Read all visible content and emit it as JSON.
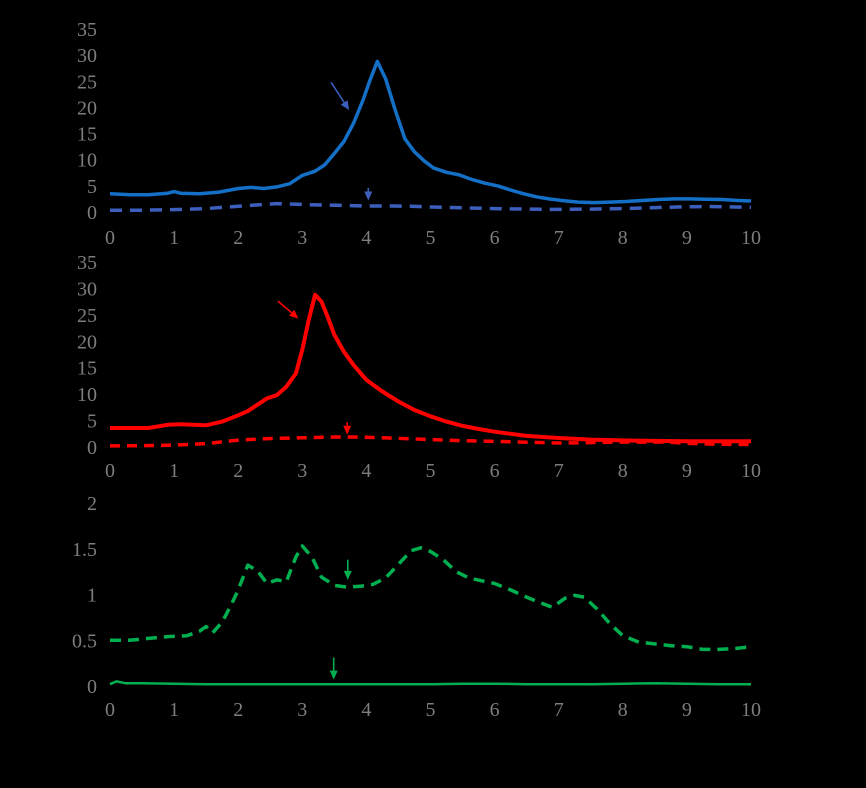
{
  "canvas": {
    "background": "#000000",
    "tick_label_color": "#7d7d7d"
  },
  "chart_data": [
    {
      "id": "chart-top-blue",
      "type": "line",
      "title": "",
      "xlabel": "",
      "ylabel": "",
      "x_range": [
        0,
        10
      ],
      "y_range": [
        0,
        35
      ],
      "x_ticks": [
        0,
        1,
        2,
        3,
        4,
        5,
        6,
        7,
        8,
        9,
        10
      ],
      "y_ticks": [
        0,
        5,
        10,
        15,
        20,
        25,
        30,
        35
      ],
      "grid": false,
      "legend": "none",
      "series": [
        {
          "name": "solid-curve",
          "color": "#1470c6",
          "dash": "none",
          "width": 3.5,
          "points": [
            [
              0,
              3.5
            ],
            [
              0.3,
              3.3
            ],
            [
              0.6,
              3.3
            ],
            [
              0.9,
              3.6
            ],
            [
              1.0,
              3.9
            ],
            [
              1.1,
              3.6
            ],
            [
              1.4,
              3.5
            ],
            [
              1.7,
              3.8
            ],
            [
              2.0,
              4.5
            ],
            [
              2.2,
              4.7
            ],
            [
              2.4,
              4.5
            ],
            [
              2.6,
              4.8
            ],
            [
              2.8,
              5.4
            ],
            [
              3.0,
              7.0
            ],
            [
              3.2,
              7.8
            ],
            [
              3.35,
              9.0
            ],
            [
              3.5,
              11.2
            ],
            [
              3.65,
              13.5
            ],
            [
              3.8,
              17.0
            ],
            [
              3.95,
              21.5
            ],
            [
              4.05,
              25.0
            ],
            [
              4.17,
              28.8
            ],
            [
              4.3,
              25.5
            ],
            [
              4.45,
              19.5
            ],
            [
              4.6,
              14.0
            ],
            [
              4.75,
              11.5
            ],
            [
              4.9,
              9.8
            ],
            [
              5.05,
              8.4
            ],
            [
              5.25,
              7.6
            ],
            [
              5.45,
              7.1
            ],
            [
              5.65,
              6.2
            ],
            [
              5.85,
              5.5
            ],
            [
              6.05,
              5.0
            ],
            [
              6.25,
              4.2
            ],
            [
              6.45,
              3.5
            ],
            [
              6.65,
              2.9
            ],
            [
              6.85,
              2.5
            ],
            [
              7.05,
              2.2
            ],
            [
              7.3,
              1.9
            ],
            [
              7.55,
              1.8
            ],
            [
              7.8,
              1.9
            ],
            [
              8.05,
              2.0
            ],
            [
              8.3,
              2.2
            ],
            [
              8.55,
              2.4
            ],
            [
              8.8,
              2.5
            ],
            [
              9.05,
              2.5
            ],
            [
              9.3,
              2.45
            ],
            [
              9.55,
              2.4
            ],
            [
              9.8,
              2.2
            ],
            [
              10,
              2.1
            ]
          ]
        },
        {
          "name": "dashed-curve",
          "color": "#3c5fbe",
          "dash": "12 8",
          "width": 3.5,
          "points": [
            [
              0,
              0.35
            ],
            [
              0.5,
              0.35
            ],
            [
              1.0,
              0.45
            ],
            [
              1.5,
              0.65
            ],
            [
              2.0,
              1.1
            ],
            [
              2.3,
              1.35
            ],
            [
              2.6,
              1.6
            ],
            [
              2.9,
              1.5
            ],
            [
              3.2,
              1.35
            ],
            [
              3.5,
              1.3
            ],
            [
              3.8,
              1.2
            ],
            [
              4.1,
              1.15
            ],
            [
              4.4,
              1.15
            ],
            [
              4.7,
              1.1
            ],
            [
              5.0,
              0.95
            ],
            [
              5.5,
              0.8
            ],
            [
              6.0,
              0.65
            ],
            [
              6.5,
              0.55
            ],
            [
              7.0,
              0.5
            ],
            [
              7.5,
              0.55
            ],
            [
              8.0,
              0.65
            ],
            [
              8.5,
              0.85
            ],
            [
              9.0,
              1.0
            ],
            [
              9.3,
              1.05
            ],
            [
              9.6,
              1.0
            ],
            [
              10,
              0.9
            ]
          ]
        }
      ],
      "annotations": [
        {
          "type": "arrow",
          "name": "arrow-to-solid",
          "color": "#3c5fbe",
          "from": [
            3.45,
            24.8
          ],
          "to": [
            3.73,
            19.5
          ]
        },
        {
          "type": "arrow",
          "name": "arrow-to-dashed",
          "color": "#3c5fbe",
          "from": [
            4.03,
            4.6
          ],
          "to": [
            4.03,
            2.2
          ]
        }
      ]
    },
    {
      "id": "chart-middle-red",
      "type": "line",
      "title": "",
      "xlabel": "",
      "ylabel": "",
      "x_range": [
        0,
        10
      ],
      "y_range": [
        0,
        35
      ],
      "x_ticks": [
        0,
        1,
        2,
        3,
        4,
        5,
        6,
        7,
        8,
        9,
        10
      ],
      "y_ticks": [
        0,
        5,
        10,
        15,
        20,
        25,
        30,
        35
      ],
      "grid": false,
      "legend": "none",
      "series": [
        {
          "name": "solid-curve",
          "color": "#ff0000",
          "dash": "none",
          "width": 4,
          "points": [
            [
              0,
              3.6
            ],
            [
              0.3,
              3.6
            ],
            [
              0.6,
              3.6
            ],
            [
              0.9,
              4.2
            ],
            [
              1.1,
              4.3
            ],
            [
              1.3,
              4.2
            ],
            [
              1.5,
              4.1
            ],
            [
              1.75,
              4.8
            ],
            [
              2.0,
              6.0
            ],
            [
              2.15,
              6.8
            ],
            [
              2.3,
              8.0
            ],
            [
              2.45,
              9.2
            ],
            [
              2.6,
              9.8
            ],
            [
              2.75,
              11.4
            ],
            [
              2.9,
              13.9
            ],
            [
              3.0,
              18.4
            ],
            [
              3.1,
              24.0
            ],
            [
              3.2,
              28.8
            ],
            [
              3.3,
              27.5
            ],
            [
              3.4,
              24.5
            ],
            [
              3.5,
              21.2
            ],
            [
              3.65,
              18.0
            ],
            [
              3.8,
              15.5
            ],
            [
              4.0,
              12.7
            ],
            [
              4.25,
              10.5
            ],
            [
              4.5,
              8.6
            ],
            [
              4.75,
              7.0
            ],
            [
              5.0,
              5.8
            ],
            [
              5.25,
              4.8
            ],
            [
              5.5,
              4.0
            ],
            [
              5.75,
              3.4
            ],
            [
              6.0,
              2.9
            ],
            [
              6.25,
              2.5
            ],
            [
              6.5,
              2.1
            ],
            [
              6.75,
              1.9
            ],
            [
              7.0,
              1.7
            ],
            [
              7.5,
              1.4
            ],
            [
              8.0,
              1.25
            ],
            [
              8.5,
              1.15
            ],
            [
              9.0,
              1.1
            ],
            [
              9.5,
              1.1
            ],
            [
              10,
              1.1
            ]
          ]
        },
        {
          "name": "dashed-curve",
          "color": "#ff0000",
          "dash": "10 7",
          "width": 3.5,
          "points": [
            [
              0,
              0.2
            ],
            [
              0.5,
              0.25
            ],
            [
              1.0,
              0.35
            ],
            [
              1.5,
              0.65
            ],
            [
              2.0,
              1.3
            ],
            [
              2.5,
              1.6
            ],
            [
              3.0,
              1.75
            ],
            [
              3.5,
              1.9
            ],
            [
              3.8,
              1.9
            ],
            [
              4.1,
              1.8
            ],
            [
              4.5,
              1.65
            ],
            [
              5.0,
              1.4
            ],
            [
              5.5,
              1.2
            ],
            [
              6.0,
              1.05
            ],
            [
              6.5,
              0.9
            ],
            [
              7.0,
              0.75
            ],
            [
              7.4,
              0.8
            ],
            [
              7.8,
              0.9
            ],
            [
              8.1,
              0.95
            ],
            [
              8.4,
              0.9
            ],
            [
              8.7,
              0.95
            ],
            [
              9.0,
              0.7
            ],
            [
              9.4,
              0.55
            ],
            [
              9.7,
              0.5
            ],
            [
              10,
              0.5
            ]
          ]
        }
      ],
      "annotations": [
        {
          "type": "arrow",
          "name": "arrow-to-solid",
          "color": "#ff0000",
          "from": [
            2.62,
            27.6
          ],
          "to": [
            2.94,
            24.3
          ]
        },
        {
          "type": "arrow",
          "name": "arrow-to-dashed",
          "color": "#ff0000",
          "from": [
            3.7,
            4.7
          ],
          "to": [
            3.7,
            2.3
          ]
        }
      ]
    },
    {
      "id": "chart-bottom-green",
      "type": "line",
      "title": "",
      "xlabel": "",
      "ylabel": "",
      "x_range": [
        0,
        10
      ],
      "y_range": [
        0,
        2
      ],
      "x_ticks": [
        0,
        1,
        2,
        3,
        4,
        5,
        6,
        7,
        8,
        9,
        10
      ],
      "y_ticks": [
        0,
        0.5,
        1,
        1.5,
        2
      ],
      "grid": false,
      "legend": "none",
      "series": [
        {
          "name": "dashed-curve",
          "color": "#00b050",
          "dash": "11 7",
          "width": 3.5,
          "points": [
            [
              0,
              0.5
            ],
            [
              0.3,
              0.5
            ],
            [
              0.6,
              0.52
            ],
            [
              0.9,
              0.54
            ],
            [
              1.2,
              0.55
            ],
            [
              1.4,
              0.6
            ],
            [
              1.5,
              0.65
            ],
            [
              1.6,
              0.58
            ],
            [
              1.75,
              0.7
            ],
            [
              1.9,
              0.9
            ],
            [
              2.0,
              1.05
            ],
            [
              2.15,
              1.32
            ],
            [
              2.3,
              1.26
            ],
            [
              2.45,
              1.12
            ],
            [
              2.6,
              1.16
            ],
            [
              2.75,
              1.14
            ],
            [
              2.9,
              1.41
            ],
            [
              3.0,
              1.53
            ],
            [
              3.15,
              1.41
            ],
            [
              3.3,
              1.19
            ],
            [
              3.5,
              1.1
            ],
            [
              3.7,
              1.08
            ],
            [
              3.9,
              1.09
            ],
            [
              4.1,
              1.11
            ],
            [
              4.3,
              1.18
            ],
            [
              4.5,
              1.33
            ],
            [
              4.7,
              1.48
            ],
            [
              4.85,
              1.51
            ],
            [
              5.0,
              1.47
            ],
            [
              5.2,
              1.38
            ],
            [
              5.4,
              1.25
            ],
            [
              5.6,
              1.18
            ],
            [
              5.8,
              1.15
            ],
            [
              6.0,
              1.12
            ],
            [
              6.25,
              1.05
            ],
            [
              6.5,
              0.97
            ],
            [
              6.75,
              0.9
            ],
            [
              6.9,
              0.86
            ],
            [
              7.1,
              0.96
            ],
            [
              7.25,
              0.99
            ],
            [
              7.4,
              0.97
            ],
            [
              7.6,
              0.84
            ],
            [
              7.8,
              0.68
            ],
            [
              8.0,
              0.55
            ],
            [
              8.25,
              0.48
            ],
            [
              8.5,
              0.46
            ],
            [
              8.75,
              0.44
            ],
            [
              9.0,
              0.43
            ],
            [
              9.25,
              0.4
            ],
            [
              9.5,
              0.4
            ],
            [
              9.75,
              0.41
            ],
            [
              10,
              0.43
            ]
          ]
        },
        {
          "name": "solid-curve",
          "color": "#00b050",
          "dash": "none",
          "width": 2.5,
          "points": [
            [
              0,
              0.02
            ],
            [
              0.1,
              0.05
            ],
            [
              0.25,
              0.03
            ],
            [
              0.5,
              0.03
            ],
            [
              1,
              0.025
            ],
            [
              1.5,
              0.02
            ],
            [
              2,
              0.02
            ],
            [
              2.5,
              0.02
            ],
            [
              3,
              0.02
            ],
            [
              3.5,
              0.02
            ],
            [
              4,
              0.02
            ],
            [
              4.5,
              0.02
            ],
            [
              5,
              0.02
            ],
            [
              5.5,
              0.025
            ],
            [
              6,
              0.025
            ],
            [
              6.5,
              0.02
            ],
            [
              7,
              0.02
            ],
            [
              7.5,
              0.02
            ],
            [
              8,
              0.025
            ],
            [
              8.5,
              0.03
            ],
            [
              9,
              0.025
            ],
            [
              9.5,
              0.02
            ],
            [
              10,
              0.02
            ]
          ]
        }
      ],
      "annotations": [
        {
          "type": "arrow",
          "name": "arrow-to-dashed",
          "color": "#00b050",
          "from": [
            3.71,
            1.38
          ],
          "to": [
            3.71,
            1.16
          ]
        },
        {
          "type": "arrow",
          "name": "arrow-to-solid",
          "color": "#00b050",
          "from": [
            3.49,
            0.31
          ],
          "to": [
            3.49,
            0.07
          ]
        }
      ]
    }
  ]
}
